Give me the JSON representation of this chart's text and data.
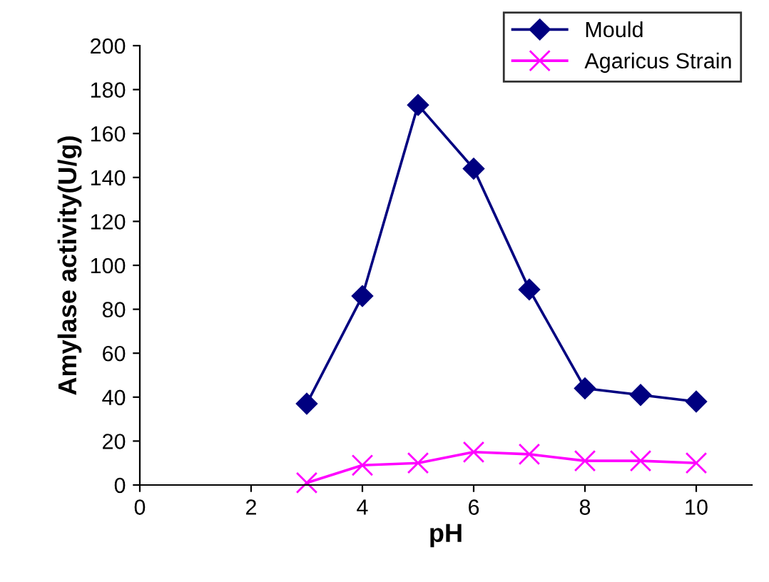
{
  "chart_data": {
    "type": "line",
    "xlabel": "pH",
    "ylabel": "Amylase activity(U/g)",
    "x": [
      3,
      4,
      5,
      6,
      7,
      8,
      9,
      10
    ],
    "series": [
      {
        "name": "Mould",
        "color": "#000080",
        "marker": "diamond",
        "values": [
          37,
          86,
          173,
          144,
          89,
          44,
          41,
          38
        ]
      },
      {
        "name": "Agaricus Strain",
        "color": "#ff00ff",
        "marker": "cross",
        "values": [
          1,
          9,
          10,
          15,
          14,
          11,
          11,
          10
        ]
      }
    ],
    "xlim": [
      0,
      11
    ],
    "xticks": [
      0,
      2,
      4,
      6,
      8,
      10
    ],
    "ylim": [
      0,
      200
    ],
    "yticks": [
      0,
      20,
      40,
      60,
      80,
      100,
      120,
      140,
      160,
      180,
      200
    ],
    "grid": false,
    "legend": "top right",
    "line_style": "solid"
  }
}
